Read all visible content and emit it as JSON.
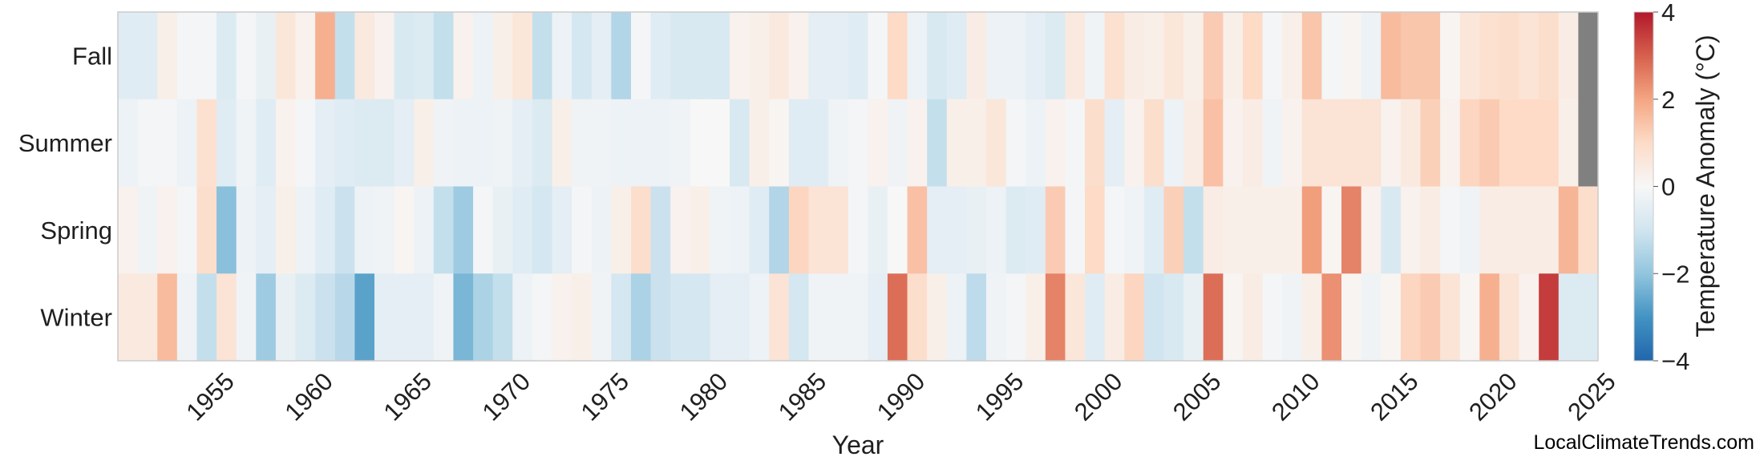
{
  "chart_data": {
    "type": "heatmap",
    "xlabel": "Year",
    "ylabel": "",
    "colorbar_label": "Temperature Anomaly (°C)",
    "colorbar_ticks": [
      -4,
      -2,
      0,
      2,
      4
    ],
    "colorbar_tick_labels": [
      "−4",
      "−2",
      "0",
      "2",
      "4"
    ],
    "color_range": [
      -4,
      4
    ],
    "colormap": [
      "#2166ac",
      "#4393c3",
      "#92c5de",
      "#d1e5f0",
      "#f7f7f7",
      "#fddbc7",
      "#f4a582",
      "#d6604d",
      "#b2182b"
    ],
    "missing_color": "#808080",
    "x_range": [
      1950,
      2025
    ],
    "x_ticks": [
      1955,
      1960,
      1965,
      1970,
      1975,
      1980,
      1985,
      1990,
      1995,
      2000,
      2005,
      2010,
      2015,
      2020,
      2025
    ],
    "seasons": [
      "Fall",
      "Summer",
      "Spring",
      "Winter"
    ],
    "years": [
      1950,
      1951,
      1952,
      1953,
      1954,
      1955,
      1956,
      1957,
      1958,
      1959,
      1960,
      1961,
      1962,
      1963,
      1964,
      1965,
      1966,
      1967,
      1968,
      1969,
      1970,
      1971,
      1972,
      1973,
      1974,
      1975,
      1976,
      1977,
      1978,
      1979,
      1980,
      1981,
      1982,
      1983,
      1984,
      1985,
      1986,
      1987,
      1988,
      1989,
      1990,
      1991,
      1992,
      1993,
      1994,
      1995,
      1996,
      1997,
      1998,
      1999,
      2000,
      2001,
      2002,
      2003,
      2004,
      2005,
      2006,
      2007,
      2008,
      2009,
      2010,
      2011,
      2012,
      2013,
      2014,
      2015,
      2016,
      2017,
      2018,
      2019,
      2020,
      2021,
      2022,
      2023,
      2024
    ],
    "values": [
      [
        -0.6,
        -0.6,
        0.3,
        -0.1,
        -0.1,
        -0.7,
        -0.1,
        -0.4,
        0.6,
        0.2,
        1.8,
        -1.2,
        0.5,
        0.2,
        -0.8,
        -0.7,
        -1.2,
        0.2,
        -0.3,
        0.3,
        0.6,
        -1.2,
        -0.3,
        -0.9,
        -0.5,
        -1.5,
        -0.1,
        -0.6,
        -0.8,
        -0.8,
        -0.8,
        0.2,
        0.3,
        0.5,
        0.2,
        -0.5,
        -0.5,
        -0.6,
        -0.1,
        1.0,
        -0.3,
        -0.8,
        -0.6,
        0.4,
        -0.3,
        -0.3,
        -0.5,
        -0.7,
        0.5,
        -0.2,
        0.8,
        0.4,
        0.3,
        0.6,
        0.3,
        1.3,
        0.3,
        1.0,
        -0.1,
        0.3,
        1.4,
        -0.1,
        0.1,
        -0.3,
        1.6,
        1.4,
        1.4,
        0.1,
        0.6,
        0.8,
        0.9,
        0.7,
        0.9,
        0.4,
        null
      ],
      [
        -0.3,
        -0.1,
        -0.1,
        -0.3,
        0.8,
        -0.6,
        -0.2,
        -0.6,
        0.2,
        -0.1,
        -0.5,
        -0.6,
        -0.7,
        -0.7,
        -0.5,
        0.3,
        -0.2,
        -0.3,
        -0.3,
        -0.2,
        -0.5,
        -0.7,
        0.3,
        -0.2,
        -0.2,
        -0.3,
        -0.3,
        -0.3,
        -0.2,
        0.0,
        0.0,
        -0.8,
        0.3,
        0.1,
        -0.6,
        -0.6,
        -0.2,
        -0.1,
        0.2,
        -0.2,
        0.2,
        -1.2,
        0.3,
        0.3,
        0.6,
        -0.1,
        -0.3,
        0.2,
        -0.1,
        0.9,
        -0.5,
        0.2,
        0.9,
        -0.3,
        0.4,
        1.5,
        0.2,
        0.4,
        -0.2,
        0.2,
        0.7,
        0.7,
        0.7,
        0.7,
        0.2,
        0.5,
        1.2,
        0.2,
        1.1,
        1.3,
        1.0,
        1.0,
        1.0,
        0.3,
        null
      ],
      [
        0.2,
        -0.2,
        0.2,
        -0.1,
        0.9,
        -2.1,
        -0.3,
        -0.5,
        0.3,
        -0.3,
        -0.6,
        -1.1,
        -0.3,
        -0.2,
        0.1,
        -0.3,
        -1.2,
        -1.8,
        -0.1,
        -0.4,
        -0.6,
        -0.9,
        -0.5,
        -0.1,
        -0.3,
        0.3,
        0.9,
        -1.1,
        0.2,
        0.3,
        -0.2,
        -0.3,
        -0.6,
        -1.5,
        1.1,
        0.7,
        0.7,
        -0.1,
        -0.4,
        0.0,
        1.5,
        -0.5,
        -0.5,
        -0.4,
        -0.3,
        -0.7,
        -0.6,
        1.3,
        -0.1,
        1.0,
        -0.1,
        -0.2,
        -0.6,
        1.2,
        -1.2,
        0.4,
        0.3,
        0.3,
        0.3,
        0.3,
        2.1,
        0.1,
        2.5,
        0.2,
        -0.8,
        0.2,
        0.4,
        -0.1,
        -0.2,
        0.4,
        0.4,
        0.4,
        0.4,
        1.7,
        0.9
      ],
      [
        0.5,
        0.5,
        1.6,
        -0.2,
        -1.2,
        0.7,
        -0.2,
        -1.8,
        -0.4,
        -0.7,
        -1.1,
        -1.4,
        -2.7,
        -0.5,
        -0.5,
        -0.5,
        -0.2,
        -2.3,
        -1.6,
        -1.2,
        -0.3,
        -0.1,
        0.2,
        0.3,
        -0.2,
        -0.9,
        -1.6,
        -1.1,
        -0.9,
        -0.9,
        -0.5,
        -0.5,
        -0.3,
        0.7,
        -0.9,
        -0.2,
        -0.2,
        -0.2,
        -0.5,
        2.8,
        0.9,
        0.3,
        -0.3,
        -1.3,
        -0.2,
        -0.1,
        0.3,
        2.5,
        0.6,
        -0.6,
        0.4,
        1.1,
        -1.0,
        -0.8,
        -0.4,
        2.8,
        0.1,
        0.4,
        -0.1,
        -0.2,
        0.3,
        2.3,
        0.1,
        -0.2,
        0.1,
        1.1,
        1.3,
        0.7,
        0.1,
        1.8,
        0.7,
        0.2,
        3.5,
        -0.7,
        -0.7
      ]
    ]
  },
  "credit": "LocalClimateTrends.com"
}
